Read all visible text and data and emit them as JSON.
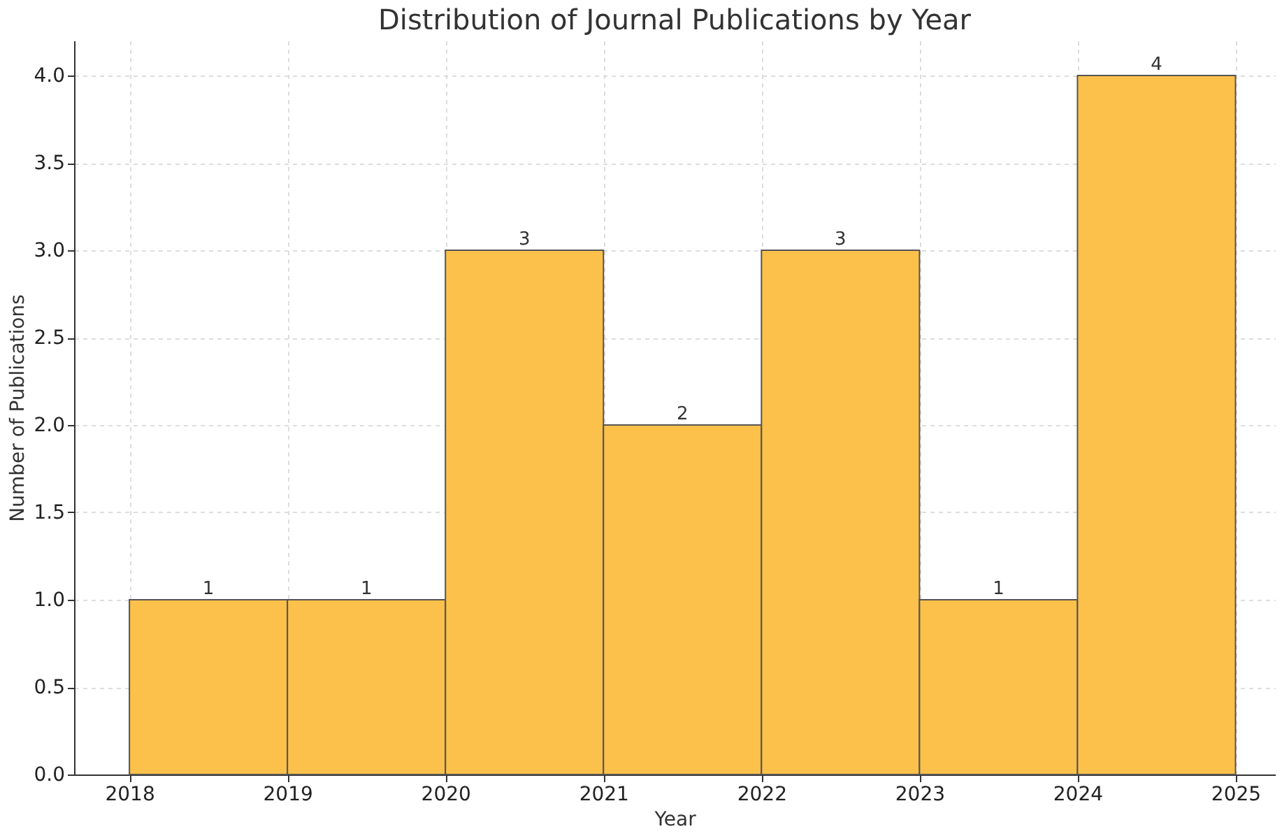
{
  "chart_data": {
    "type": "histogram",
    "title": "Distribution of Journal Publications by Year",
    "xlabel": "Year",
    "ylabel": "Number of Publications",
    "bins": [
      2018,
      2019,
      2020,
      2021,
      2022,
      2023,
      2024,
      2025
    ],
    "values": [
      1,
      1,
      3,
      2,
      3,
      1,
      4
    ],
    "color": "#fcc14a",
    "xlim": [
      2017.65,
      2025.25
    ],
    "xticks": [
      2018,
      2019,
      2020,
      2021,
      2022,
      2023,
      2024,
      2025
    ],
    "ylim": [
      0,
      4.2
    ],
    "yticks": [
      {
        "value": 0,
        "label": "0.0"
      },
      0.5,
      {
        "value": 1,
        "label": "1.0"
      },
      1.5,
      {
        "value": 2,
        "label": "2.0"
      },
      2.5,
      {
        "value": 3,
        "label": "3.0"
      },
      3.5,
      {
        "value": 4,
        "label": "4.0"
      }
    ],
    "grid": true,
    "data_labels": true
  }
}
